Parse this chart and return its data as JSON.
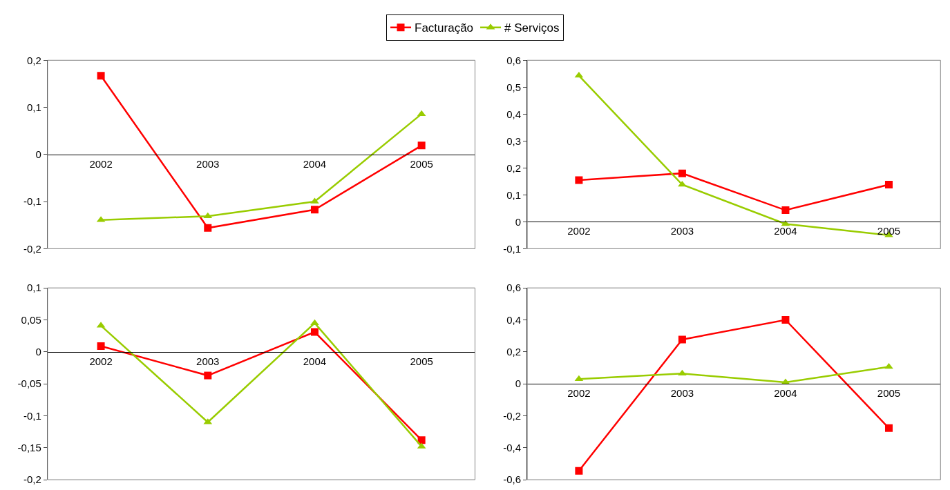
{
  "chart_data": [
    {
      "type": "line",
      "categories": [
        "2002",
        "2003",
        "2004",
        "2005"
      ],
      "ylim": [
        -0.2,
        0.2
      ],
      "yticks": [
        {
          "value": -0.2,
          "label": "-0,2"
        },
        {
          "value": -0.1,
          "label": "-0,1"
        },
        0,
        {
          "value": 0.1,
          "label": "0,1"
        },
        {
          "value": 0.2,
          "label": "0,2"
        }
      ],
      "grid": false,
      "legend": "top",
      "series": [
        {
          "name": "Facturação",
          "color": "#ff0000",
          "marker": "square",
          "values": [
            0.167,
            -0.156,
            -0.117,
            0.019
          ]
        },
        {
          "name": "# Serviços",
          "color": "#99cc00",
          "marker": "triangle",
          "values": [
            -0.139,
            -0.131,
            -0.1,
            0.086
          ]
        }
      ]
    },
    {
      "type": "line",
      "categories": [
        "2002",
        "2003",
        "2004",
        "2005"
      ],
      "ylim": [
        -0.1,
        0.6
      ],
      "yticks": [
        {
          "value": -0.1,
          "label": "-0,1"
        },
        0,
        {
          "value": 0.1,
          "label": "0,1"
        },
        {
          "value": 0.2,
          "label": "0,2"
        },
        {
          "value": 0.3,
          "label": "0,3"
        },
        {
          "value": 0.4,
          "label": "0,4"
        },
        {
          "value": 0.5,
          "label": "0,5"
        },
        {
          "value": 0.6,
          "label": "0,6"
        }
      ],
      "grid": false,
      "series": [
        {
          "color": "#ff0000",
          "marker": "square",
          "values": [
            0.155,
            0.18,
            0.043,
            0.138
          ]
        },
        {
          "color": "#99cc00",
          "marker": "triangle",
          "values": [
            0.543,
            0.138,
            -0.008,
            -0.05
          ]
        }
      ]
    },
    {
      "type": "line",
      "categories": [
        "2002",
        "2003",
        "2004",
        "2005"
      ],
      "ylim": [
        -0.2,
        0.1
      ],
      "yticks": [
        {
          "value": -0.2,
          "label": "-0,2"
        },
        {
          "value": -0.15,
          "label": "-0,15"
        },
        {
          "value": -0.1,
          "label": "-0,1"
        },
        {
          "value": -0.05,
          "label": "-0,05"
        },
        0,
        {
          "value": 0.05,
          "label": "0,05"
        },
        {
          "value": 0.1,
          "label": "0,1"
        }
      ],
      "grid": false,
      "series": [
        {
          "color": "#ff0000",
          "marker": "square",
          "values": [
            0.009,
            -0.037,
            0.031,
            -0.138
          ]
        },
        {
          "color": "#99cc00",
          "marker": "triangle",
          "values": [
            0.041,
            -0.11,
            0.045,
            -0.148
          ]
        }
      ]
    },
    {
      "type": "line",
      "categories": [
        "2002",
        "2003",
        "2004",
        "2005"
      ],
      "ylim": [
        -0.6,
        0.6
      ],
      "yticks": [
        {
          "value": -0.6,
          "label": "-0,6"
        },
        {
          "value": -0.4,
          "label": "-0,4"
        },
        {
          "value": -0.2,
          "label": "-0,2"
        },
        0,
        {
          "value": 0.2,
          "label": "0,2"
        },
        {
          "value": 0.4,
          "label": "0,4"
        },
        {
          "value": 0.6,
          "label": "0,6"
        }
      ],
      "grid": false,
      "series": [
        {
          "color": "#ff0000",
          "marker": "square",
          "values": [
            -0.545,
            0.277,
            0.4,
            -0.277
          ]
        },
        {
          "color": "#99cc00",
          "marker": "triangle",
          "values": [
            0.03,
            0.064,
            0.009,
            0.106
          ]
        }
      ]
    }
  ]
}
